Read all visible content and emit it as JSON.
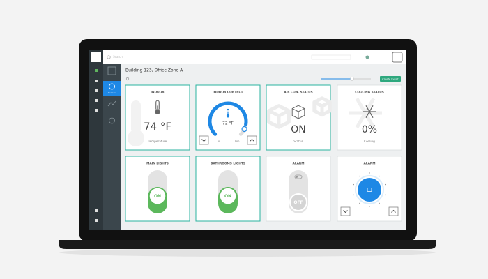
{
  "topbar": {
    "search": "Search"
  },
  "sidebar": {
    "active": "Scenes"
  },
  "header": {
    "title": "Building 123, Office Zone A",
    "button": "Create Event"
  },
  "cards": [
    {
      "title": "INDOOR",
      "value": "74 °F",
      "caption": "Temperature"
    },
    {
      "title": "INDOOR CONTROL",
      "value": "72 °F",
      "min": "0",
      "max": "100"
    },
    {
      "title": "AIR CON. STATUS",
      "value": "ON",
      "caption": "Status"
    },
    {
      "title": "COOLING STATUS",
      "value": "0%",
      "caption": "Cooling"
    },
    {
      "title": "MAIN LIGHTS",
      "value": "ON"
    },
    {
      "title": "BATHROOMS LIGHTS",
      "value": "ON"
    },
    {
      "title": "ALARM",
      "value": "OFF"
    },
    {
      "title": "ALARM"
    }
  ]
}
